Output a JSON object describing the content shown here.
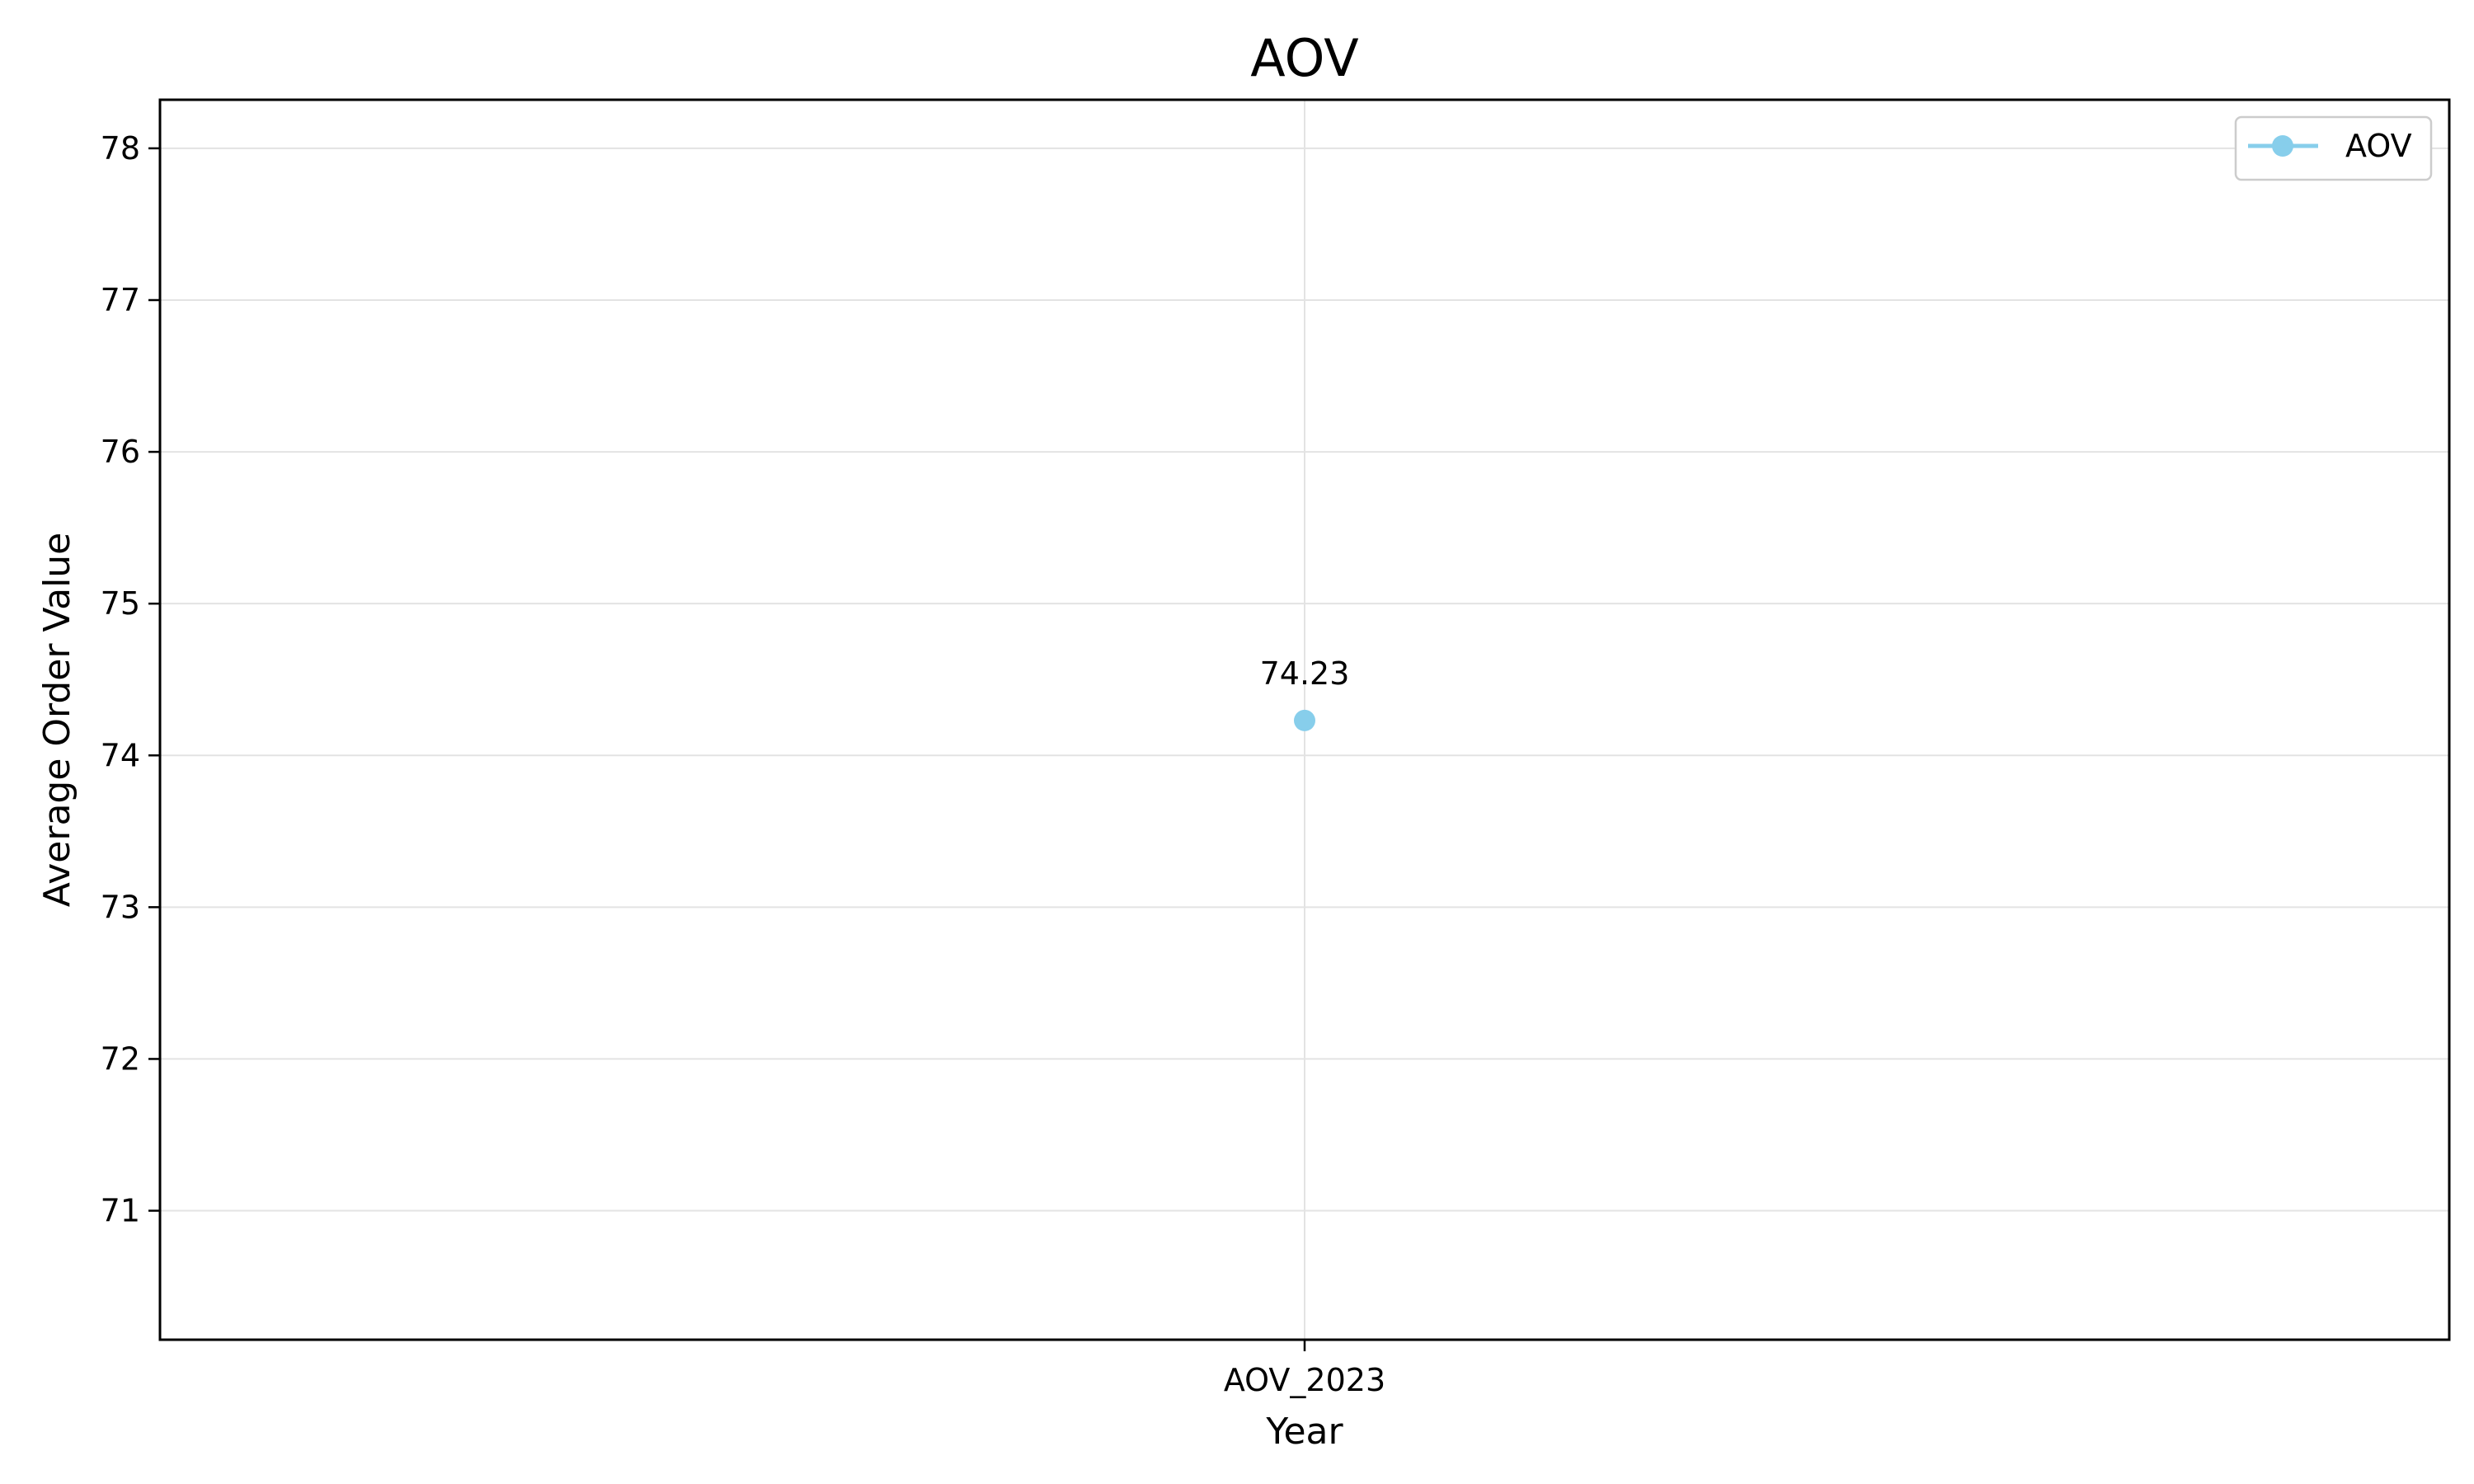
{
  "chart_data": {
    "type": "line",
    "title": "AOV",
    "xlabel": "Year",
    "ylabel": "Average Order Value",
    "categories": [
      "AOV_2023"
    ],
    "series": [
      {
        "name": "AOV",
        "values": [
          74.23
        ],
        "color": "#87CEEB",
        "marker": "circle"
      }
    ],
    "data_labels": [
      "74.23"
    ],
    "ylim": [
      70.15,
      78.32
    ],
    "yticks": [
      71,
      72,
      73,
      74,
      75,
      76,
      77,
      78
    ],
    "grid": true,
    "legend": "top-right"
  }
}
